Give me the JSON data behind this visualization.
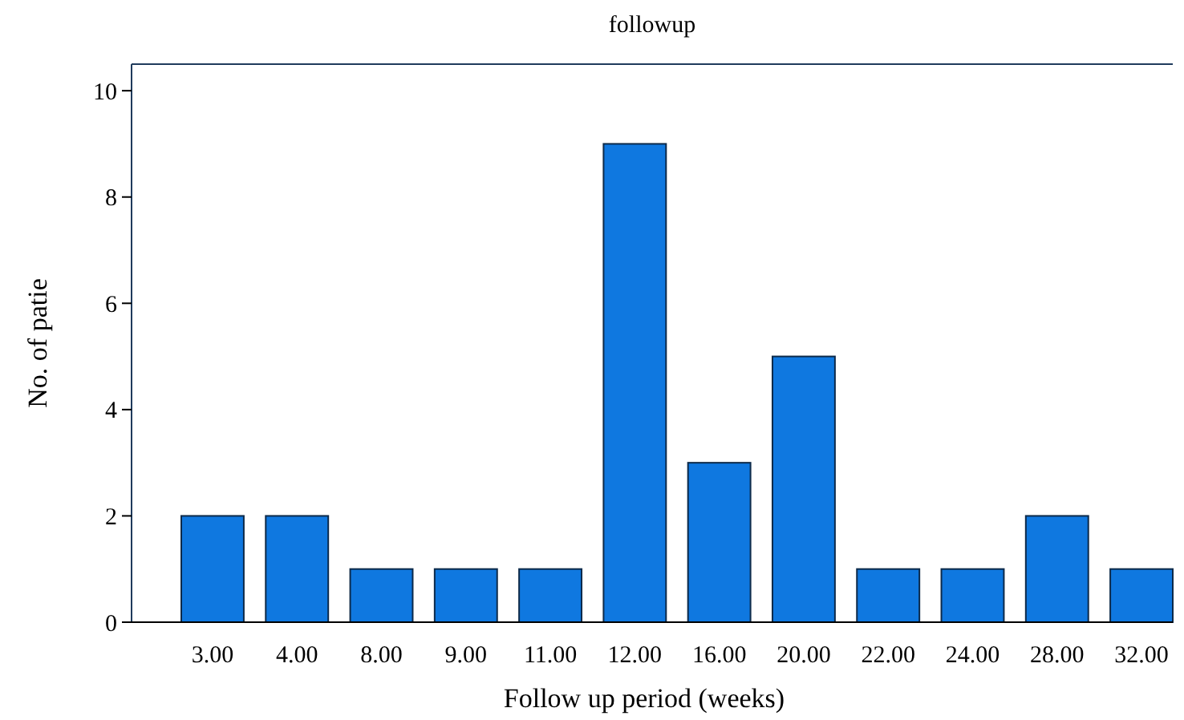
{
  "chart_data": {
    "type": "bar",
    "title": "followup",
    "xlabel": "Follow up period (weeks)",
    "ylabel": "No. of patie",
    "categories": [
      "3.00",
      "4.00",
      "8.00",
      "9.00",
      "11.00",
      "12.00",
      "16.00",
      "20.00",
      "22.00",
      "24.00",
      "28.00",
      "32.00"
    ],
    "values": [
      2,
      2,
      1,
      1,
      1,
      9,
      3,
      5,
      1,
      1,
      2,
      1
    ],
    "color": "#0f78e0",
    "ylim": [
      0,
      10.5
    ],
    "yticks": [
      0,
      2,
      4,
      6,
      8,
      10
    ],
    "grid": false
  }
}
